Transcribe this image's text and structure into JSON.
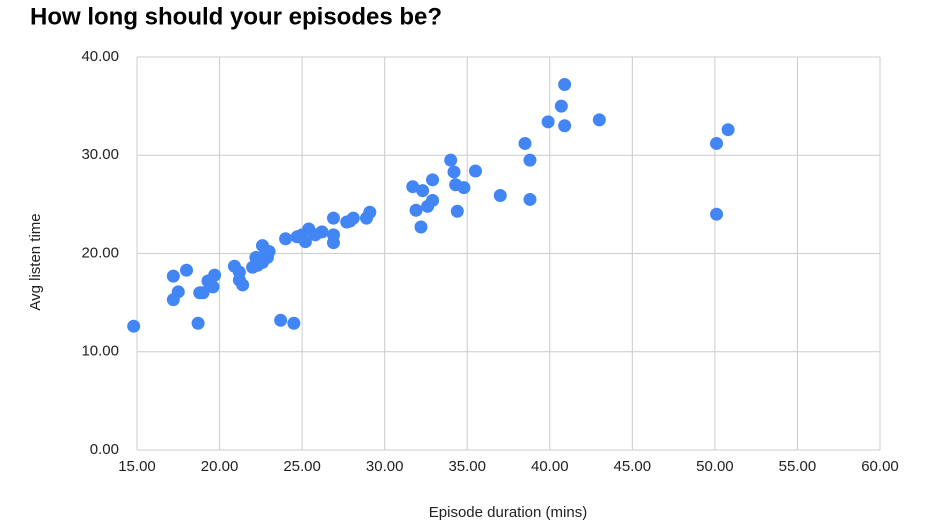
{
  "chart_data": {
    "type": "scatter",
    "title": "How long should your episodes be?",
    "xlabel": "Episode duration (mins)",
    "ylabel": "Avg listen time",
    "color": "#4285f4",
    "grid": true,
    "x": [
      14.8,
      17.2,
      18.0,
      17.5,
      17.2,
      18.7,
      18.8,
      19.0,
      19.3,
      19.6,
      19.7,
      20.9,
      21.2,
      21.2,
      21.4,
      22.0,
      22.2,
      22.3,
      22.6,
      22.6,
      22.8,
      23.0,
      22.9,
      23.7,
      24.5,
      24.0,
      24.7,
      25.2,
      25.4,
      25.0,
      25.8,
      26.2,
      26.9,
      26.9,
      26.9,
      27.7,
      28.1,
      27.9,
      28.9,
      29.1,
      31.7,
      31.9,
      32.2,
      32.3,
      32.6,
      32.9,
      32.9,
      34.0,
      34.2,
      34.3,
      34.8,
      34.4,
      35.5,
      37.0,
      38.5,
      38.8,
      38.8,
      39.9,
      40.7,
      40.9,
      40.9,
      43.0,
      50.1,
      50.8,
      50.1
    ],
    "values": [
      12.6,
      17.7,
      18.3,
      16.1,
      15.3,
      12.9,
      16.0,
      16.0,
      17.2,
      16.6,
      17.8,
      18.7,
      18.1,
      17.3,
      16.8,
      18.6,
      19.6,
      18.8,
      19.1,
      20.8,
      20.1,
      20.2,
      19.6,
      13.2,
      12.9,
      21.5,
      21.7,
      21.2,
      22.5,
      21.9,
      21.9,
      22.2,
      23.6,
      21.9,
      21.1,
      23.2,
      23.6,
      23.3,
      23.6,
      24.2,
      26.8,
      24.4,
      22.7,
      26.4,
      24.8,
      25.4,
      27.5,
      29.5,
      28.3,
      27.0,
      26.7,
      24.3,
      28.4,
      25.9,
      31.2,
      29.5,
      25.5,
      33.4,
      35.0,
      37.2,
      33.0,
      33.6,
      31.2,
      32.6,
      24.0
    ],
    "xlim": [
      15,
      60
    ],
    "xticks": [
      {
        "value": 15,
        "label": "15.00"
      },
      {
        "value": 20,
        "label": "20.00"
      },
      {
        "value": 25,
        "label": "25.00"
      },
      {
        "value": 30,
        "label": "30.00"
      },
      {
        "value": 35,
        "label": "35.00"
      },
      {
        "value": 40,
        "label": "40.00"
      },
      {
        "value": 45,
        "label": "45.00"
      },
      {
        "value": 50,
        "label": "50.00"
      },
      {
        "value": 55,
        "label": "55.00"
      },
      {
        "value": 60,
        "label": "60.00"
      }
    ],
    "ylim": [
      0,
      40
    ],
    "yticks": [
      {
        "value": 0,
        "label": "0.00"
      },
      {
        "value": 10,
        "label": "10.00"
      },
      {
        "value": 20,
        "label": "20.00"
      },
      {
        "value": 30,
        "label": "30.00"
      },
      {
        "value": 40,
        "label": "40.00"
      }
    ]
  }
}
